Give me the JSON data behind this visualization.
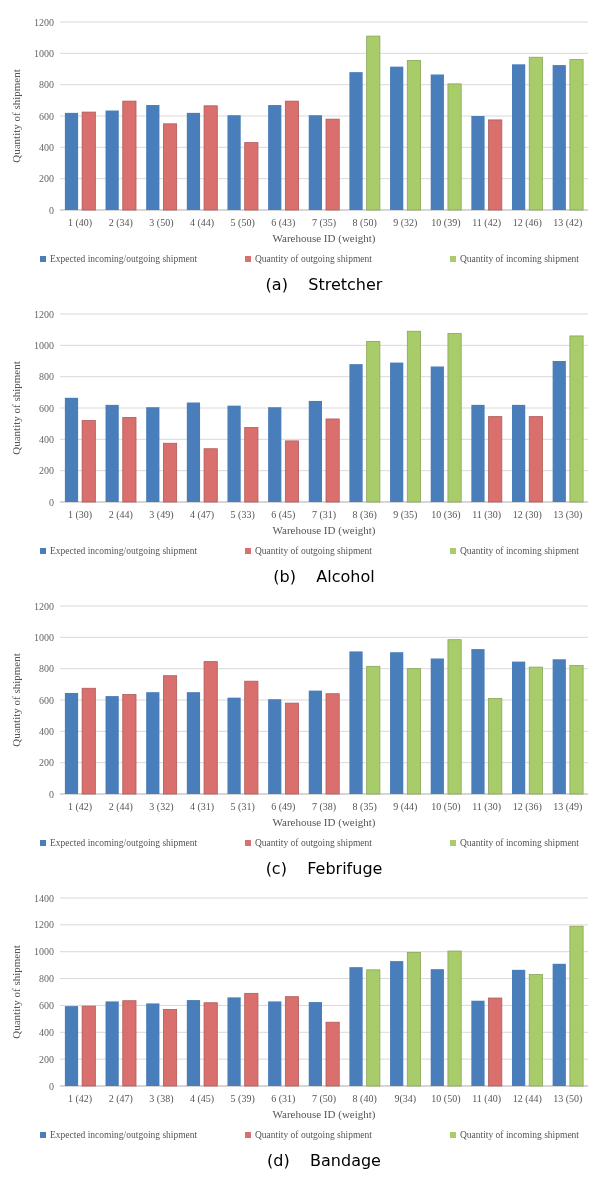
{
  "chart_data": [
    {
      "type": "bar",
      "title": "(a)    Stretcher",
      "xlabel": "Warehouse  ID (weight)",
      "ylabel": "Quantity of shipment",
      "categories": [
        "1 (40)",
        "2 (34)",
        "3 (50)",
        "4 (44)",
        "5 (50)",
        "6 (43)",
        "7 (35)",
        "8 (50)",
        "9 (32)",
        "10 (39)",
        "11 (42)",
        "12 (46)",
        "13 (42)"
      ],
      "ylim": [
        0,
        1200
      ],
      "yticks": [
        0,
        200,
        400,
        600,
        800,
        1000,
        1200
      ],
      "grid": "y",
      "legend": "bottom",
      "series": [
        {
          "name": "Expected incoming/outgoing shipment",
          "color": "#4a7ebb",
          "values": [
            620,
            635,
            670,
            620,
            605,
            670,
            605,
            880,
            915,
            865,
            600,
            930,
            925
          ]
        },
        {
          "name": "Quantity of outgoing shipment",
          "color": "#d9706e",
          "values": [
            625,
            695,
            550,
            665,
            430,
            695,
            580,
            null,
            null,
            null,
            575,
            null,
            null
          ]
        },
        {
          "name": "Quantity of incoming shipment",
          "color": "#a9cc6a",
          "values": [
            null,
            null,
            null,
            null,
            null,
            null,
            null,
            1110,
            955,
            805,
            null,
            975,
            960
          ]
        }
      ]
    },
    {
      "type": "bar",
      "title": "(b)    Alcohol",
      "xlabel": "Warehouse  ID (weight)",
      "ylabel": "Quantity of shipment",
      "categories": [
        "1 (30)",
        "2 (44)",
        "3 (49)",
        "4 (47)",
        "5 (33)",
        "6 (45)",
        "7 (31)",
        "8 (36)",
        "9 (35)",
        "10 (36)",
        "11 (30)",
        "12 (30)",
        "13 (30)"
      ],
      "ylim": [
        0,
        1200
      ],
      "yticks": [
        0,
        200,
        400,
        600,
        800,
        1000,
        1200
      ],
      "grid": "y",
      "legend": "bottom",
      "series": [
        {
          "name": "Expected incoming/outgoing shipment",
          "color": "#4a7ebb",
          "values": [
            665,
            620,
            605,
            635,
            615,
            605,
            645,
            880,
            890,
            865,
            620,
            620,
            900
          ]
        },
        {
          "name": "Quantity of outgoing shipment",
          "color": "#d9706e",
          "values": [
            520,
            540,
            375,
            340,
            475,
            390,
            530,
            null,
            null,
            null,
            545,
            545,
            null
          ]
        },
        {
          "name": "Quantity of incoming shipment",
          "color": "#a9cc6a",
          "values": [
            null,
            null,
            null,
            null,
            null,
            null,
            null,
            1025,
            1090,
            1075,
            null,
            null,
            1060
          ]
        }
      ]
    },
    {
      "type": "bar",
      "title": "(c)    Febrifuge",
      "xlabel": "Warehouse ID (weight)",
      "ylabel": "Quantity of shipment",
      "categories": [
        "1 (42)",
        "2 (44)",
        "3 (32)",
        "4 (31)",
        "5 (31)",
        "6 (49)",
        "7 (38)",
        "8 (35)",
        "9 (44)",
        "10 (50)",
        "11 (30)",
        "12 (36)",
        "13 (49)"
      ],
      "ylim": [
        0,
        1200
      ],
      "yticks": [
        0,
        200,
        400,
        600,
        800,
        1000,
        1200
      ],
      "grid": "y",
      "legend": "bottom",
      "series": [
        {
          "name": "Expected incoming/outgoing shipment",
          "color": "#4a7ebb",
          "values": [
            645,
            625,
            650,
            650,
            615,
            605,
            660,
            910,
            905,
            865,
            925,
            845,
            860
          ]
        },
        {
          "name": "Quantity of outgoing shipment",
          "color": "#d9706e",
          "values": [
            675,
            635,
            755,
            845,
            720,
            580,
            640,
            null,
            null,
            null,
            null,
            null,
            null
          ]
        },
        {
          "name": "Quantity of incoming shipment",
          "color": "#a9cc6a",
          "values": [
            null,
            null,
            null,
            null,
            null,
            null,
            null,
            815,
            800,
            985,
            610,
            810,
            820
          ]
        }
      ]
    },
    {
      "type": "bar",
      "title": "(d)    Bandage",
      "xlabel": "Warehouse ID (weight)",
      "ylabel": "Quantity of shipment",
      "categories": [
        "1 (42)",
        "2 (47)",
        "3 (38)",
        "4 (45)",
        "5 (39)",
        "6 (31)",
        "7 (50)",
        "8 (40)",
        "9(34)",
        "10 (50)",
        "11 (40)",
        "12 (44)",
        "13 (50)"
      ],
      "ylim": [
        0,
        1400
      ],
      "yticks": [
        0,
        200,
        400,
        600,
        800,
        1000,
        1200,
        1400
      ],
      "grid": "y",
      "legend": "bottom",
      "series": [
        {
          "name": "Expected incoming/outgoing shipment",
          "color": "#4a7ebb",
          "values": [
            595,
            630,
            615,
            640,
            660,
            630,
            625,
            885,
            930,
            870,
            635,
            865,
            910
          ]
        },
        {
          "name": "Quantity of outgoing shipment",
          "color": "#d9706e",
          "values": [
            595,
            635,
            570,
            620,
            690,
            665,
            475,
            null,
            null,
            null,
            655,
            null,
            null
          ]
        },
        {
          "name": "Quantity of incoming shipment",
          "color": "#a9cc6a",
          "values": [
            null,
            null,
            null,
            null,
            null,
            null,
            null,
            865,
            995,
            1005,
            null,
            830,
            1190
          ]
        }
      ]
    }
  ]
}
